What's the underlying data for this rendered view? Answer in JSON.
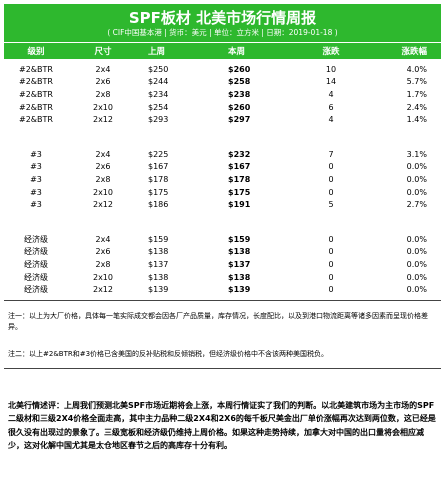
{
  "title": "SPF板材 北美市场行情周报",
  "subtitle": "( CIF中国基本港 | 货币：美元 | 单位：立方米 | 日期：2019-01-18 )",
  "headers": [
    "级别",
    "尺寸",
    "上周",
    "本周",
    "涨跌",
    "涨跌幅"
  ],
  "groups": [
    {
      "rows": [
        [
          "#2&BTR",
          "2x4",
          "$250",
          "$260",
          "10",
          "4.0%"
        ],
        [
          "#2&BTR",
          "2x6",
          "$244",
          "$258",
          "14",
          "5.7%"
        ],
        [
          "#2&BTR",
          "2x8",
          "$234",
          "$238",
          "4",
          "1.7%"
        ],
        [
          "#2&BTR",
          "2x10",
          "$254",
          "$260",
          "6",
          "2.4%"
        ],
        [
          "#2&BTR",
          "2x12",
          "$293",
          "$297",
          "4",
          "1.4%"
        ]
      ]
    },
    {
      "rows": [
        [
          "#3",
          "2x4",
          "$225",
          "$232",
          "7",
          "3.1%"
        ],
        [
          "#3",
          "2x6",
          "$167",
          "$167",
          "0",
          "0.0%"
        ],
        [
          "#3",
          "2x8",
          "$178",
          "$178",
          "0",
          "0.0%"
        ],
        [
          "#3",
          "2x10",
          "$175",
          "$175",
          "0",
          "0.0%"
        ],
        [
          "#3",
          "2x12",
          "$186",
          "$191",
          "5",
          "2.7%"
        ]
      ]
    },
    {
      "rows": [
        [
          "经济级",
          "2x4",
          "$159",
          "$159",
          "0",
          "0.0%"
        ],
        [
          "经济级",
          "2x6",
          "$138",
          "$138",
          "0",
          "0.0%"
        ],
        [
          "经济级",
          "2x8",
          "$137",
          "$137",
          "0",
          "0.0%"
        ],
        [
          "经济级",
          "2x10",
          "$138",
          "$138",
          "0",
          "0.0%"
        ],
        [
          "经济级",
          "2x12",
          "$139",
          "$139",
          "0",
          "0.0%"
        ]
      ]
    }
  ],
  "notes": [
    "注一：以上为大厂价格，具体每一笔实际成交都会因各厂产品质量，库存情况，长度配比，以及到港口物流距离等诸多因素而呈现价格差异。",
    "注二：以上#2&BTR和#3价格已含美国的反补贴税和反倾销税，但经济级价格中不含该两种美国税负。"
  ],
  "comment": "北美行情述评：上周我们预测北美SPF市场近期将会上涨，本周行情证实了我们的判断。以北美建筑市场为主市场的SPF二级材和三级2X4价格全面走高，其中主力品种二级2X4和2X6的每千板尺美金出厂单价涨幅再次达到两位数，这已经是很久没有出现过的景象了。三级宽板和经济级仍维持上周价格。如果这种走势持续，加拿大对中国的出口量将会相应减少，这对化解中国尤其是太仓地区春节之后的高库存十分有利。"
}
